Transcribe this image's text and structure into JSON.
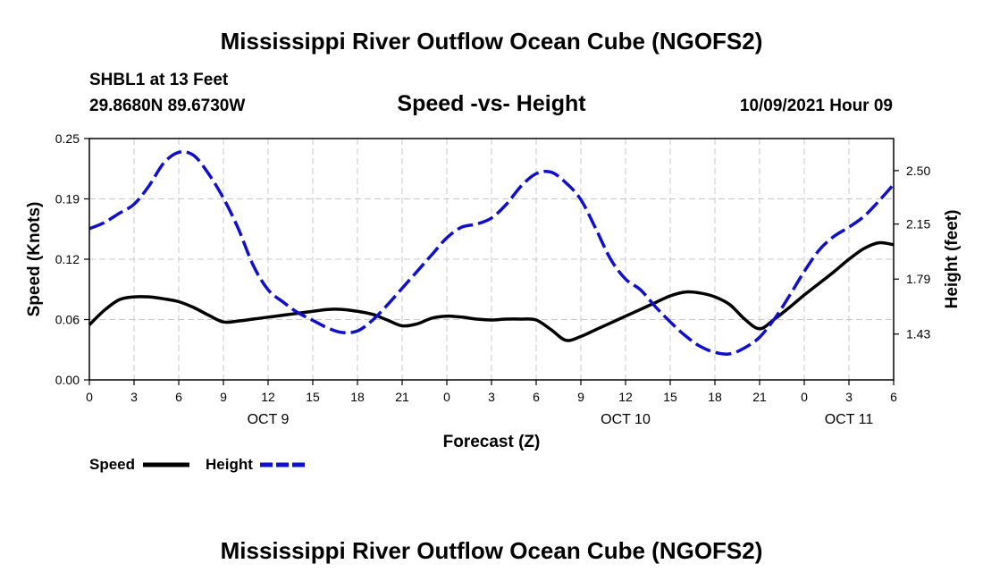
{
  "title": "Mississippi River Outflow Ocean Cube (NGOFS2)",
  "footer_title": "Mississippi River Outflow Ocean Cube (NGOFS2)",
  "station": "SHBL1 at 13 Feet",
  "coordinates": "29.8680N  89.6730W",
  "subtitle": "Speed -vs- Height",
  "timestamp": "10/09/2021 Hour 09",
  "colors": {
    "speed": "#000000",
    "height": "#1010cc",
    "grid": "#c8c8c8"
  },
  "chart_data": {
    "type": "line",
    "title": "Speed -vs- Height",
    "xlabel": "Forecast (Z)",
    "ylabel": "Speed (Knots)",
    "y2label": "Height (feet)",
    "xlim": [
      0,
      54
    ],
    "ylim": [
      0,
      0.25
    ],
    "y2lim": [
      1.13,
      2.71
    ],
    "x_ticks": [
      0,
      3,
      6,
      9,
      12,
      15,
      18,
      21,
      24,
      27,
      30,
      33,
      36,
      39,
      42,
      45,
      48,
      51,
      54
    ],
    "x_tick_labels": [
      "0",
      "3",
      "6",
      "9",
      "12",
      "15",
      "18",
      "21",
      "0",
      "3",
      "6",
      "9",
      "12",
      "15",
      "18",
      "21",
      "0",
      "3",
      "6"
    ],
    "y_ticks": [
      0,
      0.0625,
      0.125,
      0.1875,
      0.25
    ],
    "y_tick_labels": [
      "0.00",
      "0.06",
      "0.12",
      "0.19",
      "0.25"
    ],
    "y2_ticks": [
      1.43,
      1.79,
      2.15,
      2.5
    ],
    "y2_tick_labels": [
      "1.43",
      "1.79",
      "2.15",
      "2.50"
    ],
    "dates": [
      {
        "label": "OCT 9",
        "x": 12
      },
      {
        "label": "OCT 10",
        "x": 36
      },
      {
        "label": "OCT 11",
        "x": 51
      }
    ],
    "grid": true,
    "series": [
      {
        "name": "Speed",
        "axis": "left",
        "style": "solid",
        "x": [
          0,
          1,
          2,
          3,
          4,
          5,
          6,
          7,
          8,
          9,
          10,
          11,
          12,
          13,
          14,
          15,
          16,
          17,
          18,
          19,
          20,
          21,
          22,
          23,
          24,
          25,
          26,
          27,
          28,
          29,
          30,
          31,
          32,
          33,
          34,
          35,
          36,
          37,
          38,
          39,
          40,
          41,
          42,
          43,
          44,
          45,
          46,
          47,
          48,
          49,
          50,
          51,
          52,
          53,
          54
        ],
        "values": [
          0.057,
          0.072,
          0.083,
          0.086,
          0.086,
          0.084,
          0.081,
          0.075,
          0.067,
          0.06,
          0.061,
          0.063,
          0.065,
          0.067,
          0.069,
          0.071,
          0.073,
          0.073,
          0.071,
          0.068,
          0.062,
          0.056,
          0.058,
          0.064,
          0.066,
          0.065,
          0.063,
          0.062,
          0.063,
          0.063,
          0.062,
          0.052,
          0.041,
          0.045,
          0.052,
          0.059,
          0.066,
          0.073,
          0.08,
          0.087,
          0.091,
          0.09,
          0.086,
          0.078,
          0.063,
          0.053,
          0.063,
          0.075,
          0.088,
          0.1,
          0.112,
          0.125,
          0.136,
          0.142,
          0.14
        ]
      },
      {
        "name": "Height",
        "axis": "right",
        "style": "dashed",
        "x": [
          0,
          1,
          2,
          3,
          4,
          5,
          6,
          7,
          8,
          9,
          10,
          11,
          12,
          13,
          14,
          15,
          16,
          17,
          18,
          19,
          20,
          21,
          22,
          23,
          24,
          25,
          26,
          27,
          28,
          29,
          30,
          31,
          32,
          33,
          34,
          35,
          36,
          37,
          38,
          39,
          40,
          41,
          42,
          43,
          44,
          45,
          46,
          47,
          48,
          49,
          50,
          51,
          52,
          53,
          54
        ],
        "values": [
          2.12,
          2.16,
          2.22,
          2.28,
          2.4,
          2.55,
          2.62,
          2.6,
          2.48,
          2.32,
          2.12,
          1.88,
          1.72,
          1.64,
          1.57,
          1.52,
          1.47,
          1.44,
          1.45,
          1.52,
          1.62,
          1.73,
          1.84,
          1.95,
          2.06,
          2.13,
          2.15,
          2.19,
          2.28,
          2.4,
          2.48,
          2.49,
          2.42,
          2.31,
          2.12,
          1.92,
          1.79,
          1.72,
          1.61,
          1.51,
          1.42,
          1.35,
          1.31,
          1.3,
          1.34,
          1.41,
          1.53,
          1.68,
          1.84,
          1.98,
          2.07,
          2.13,
          2.2,
          2.3,
          2.41
        ]
      }
    ]
  }
}
